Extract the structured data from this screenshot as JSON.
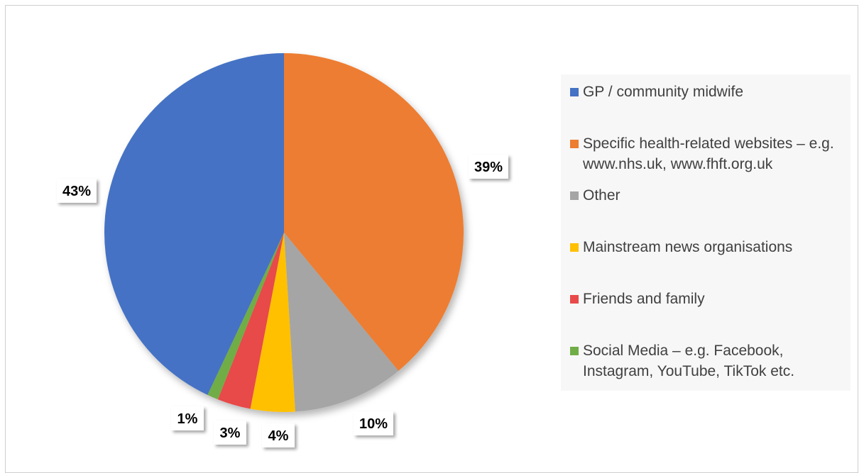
{
  "chart_data": {
    "type": "pie",
    "title": "",
    "slices": [
      {
        "label": "GP / community midwife",
        "value": 43,
        "display": "43%",
        "color": "#4472C4"
      },
      {
        "label": "Specific health-related websites – e.g. www.nhs.uk, www.fhft.org.uk",
        "value": 39,
        "display": "39%",
        "color": "#ED7D31"
      },
      {
        "label": "Other",
        "value": 10,
        "display": "10%",
        "color": "#A5A5A5"
      },
      {
        "label": "Mainstream news organisations",
        "value": 4,
        "display": "4%",
        "color": "#FFC000"
      },
      {
        "label": "Friends and family",
        "value": 3,
        "display": "3%",
        "color": "#E84A4A"
      },
      {
        "label": "Social Media – e.g. Facebook, Instagram, YouTube, TikTok etc.",
        "value": 1,
        "display": "1%",
        "color": "#70AD47"
      }
    ],
    "draw_order": [
      1,
      2,
      3,
      4,
      5,
      0
    ],
    "legend_order": [
      0,
      1,
      2,
      3,
      4,
      5
    ],
    "start": "top, clockwise",
    "legend_position": "right",
    "data_labels": "outside, white boxes with shadow"
  }
}
